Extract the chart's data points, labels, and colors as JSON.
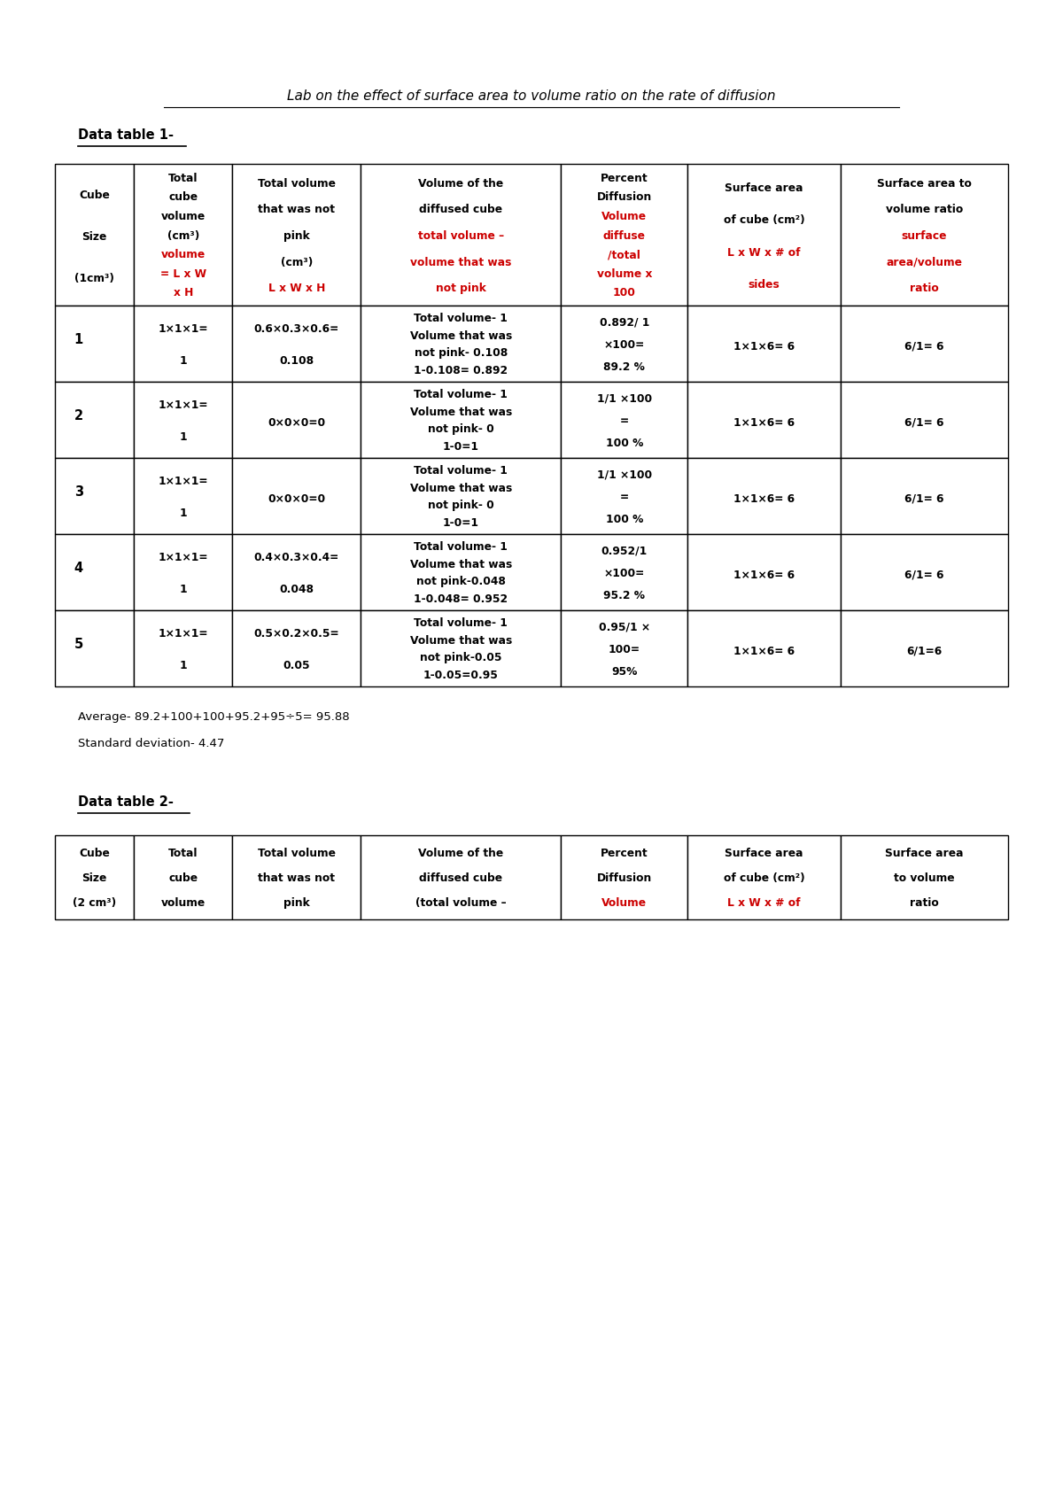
{
  "title": "Lab on the effect of surface area to volume ratio on the rate of diffusion",
  "table1_label": "Data table 1-",
  "table2_label": "Data table 2-",
  "avg_text": "Average- 89.2+100+100+95.2+95÷5= 95.88",
  "std_text": "Standard deviation- 4.47",
  "bg_color": "#ffffff",
  "black": "#000000",
  "red": "#cc0000",
  "figw": 12.0,
  "figh": 16.98,
  "dpi": 100
}
